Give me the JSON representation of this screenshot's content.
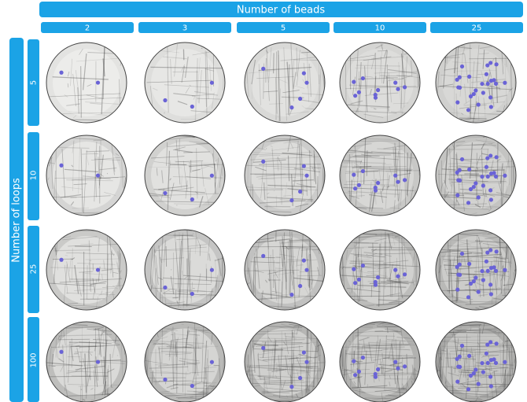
{
  "header": {
    "title": "Number of beads",
    "columns": [
      "2",
      "3",
      "5",
      "10",
      "25"
    ]
  },
  "side": {
    "title": "Number of loops",
    "rows": [
      "5",
      "10",
      "25",
      "100"
    ]
  }
}
